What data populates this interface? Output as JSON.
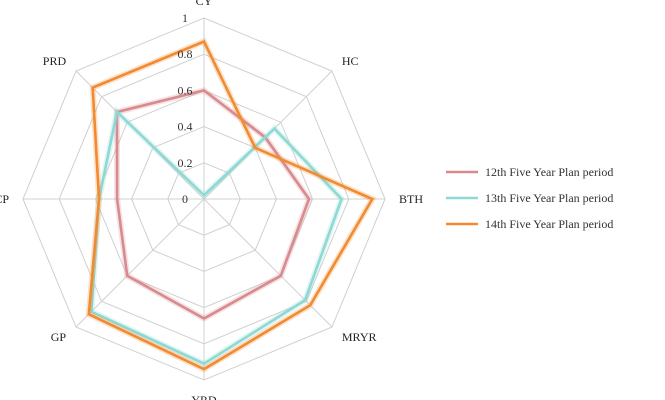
{
  "chart_data": {
    "type": "radar",
    "axes": [
      "CY",
      "HC",
      "BTH",
      "MRYR",
      "YRD",
      "GP",
      "CP",
      "PRD"
    ],
    "ticks": [
      "0",
      "0.2",
      "0.4",
      "0.6",
      "0.8",
      "1"
    ],
    "rlim": [
      0,
      1
    ],
    "grid": true,
    "legend_position": "right",
    "series": [
      {
        "name": "12th Five Year Plan period",
        "color": "#d98a8e",
        "values": [
          0.6,
          0.48,
          0.58,
          0.6,
          0.66,
          0.6,
          0.48,
          0.68
        ]
      },
      {
        "name": "13th Five Year Plan period",
        "color": "#8dd9d3",
        "values": [
          0.02,
          0.55,
          0.76,
          0.79,
          0.91,
          0.88,
          0.58,
          0.68
        ]
      },
      {
        "name": "14th Five Year Plan period",
        "color": "#f28a30",
        "values": [
          0.87,
          0.4,
          0.93,
          0.83,
          0.94,
          0.9,
          0.58,
          0.87
        ]
      }
    ]
  }
}
